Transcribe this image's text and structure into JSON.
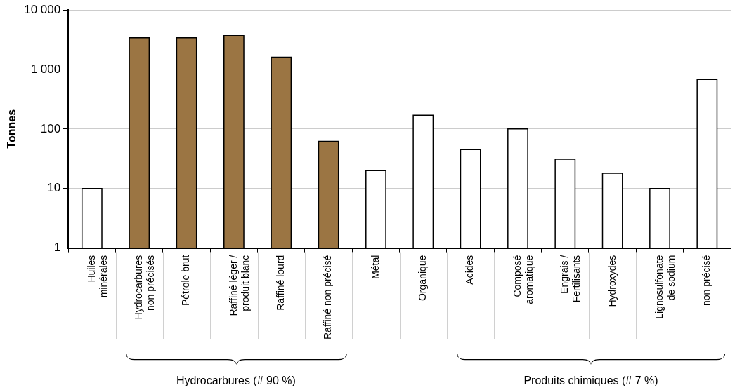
{
  "chart_data": {
    "type": "bar",
    "ylabel": "Tonnes",
    "categories": [
      "Huiles\nminérales",
      "Hydrocarbures\nnon précisés",
      "Pétrole brut",
      "Raffiné léger /\nproduit blanc",
      "Raffiné lourd",
      "Raffiné non précisé",
      "Métal",
      "Organique",
      "Acides",
      "Composé\naromatique",
      "Engrais /\nFertilisants",
      "Hydroxydes",
      "Lignosulfonate\nde sodium",
      "non précisé"
    ],
    "values": [
      10,
      3400,
      3400,
      3700,
      1600,
      62,
      20,
      170,
      45,
      100,
      31,
      18,
      10,
      680
    ],
    "colors": [
      "#ffffff",
      "#9b7543",
      "#9b7543",
      "#9b7543",
      "#9b7543",
      "#9b7543",
      "#ffffff",
      "#ffffff",
      "#ffffff",
      "#ffffff",
      "#ffffff",
      "#ffffff",
      "#ffffff",
      "#ffffff"
    ],
    "log": true,
    "ylim": [
      1,
      10000
    ],
    "yticks": [
      {
        "value": 1,
        "label": "1"
      },
      {
        "value": 10,
        "label": "10"
      },
      {
        "value": 100,
        "label": "100"
      },
      {
        "value": 1000,
        "label": "1 000"
      },
      {
        "value": 10000,
        "label": "10 000"
      }
    ],
    "grid": "y",
    "legend": false,
    "annotations": [
      "Hydrocarbures (# 90 %)",
      "Produits chimiques (# 7 %)"
    ]
  }
}
